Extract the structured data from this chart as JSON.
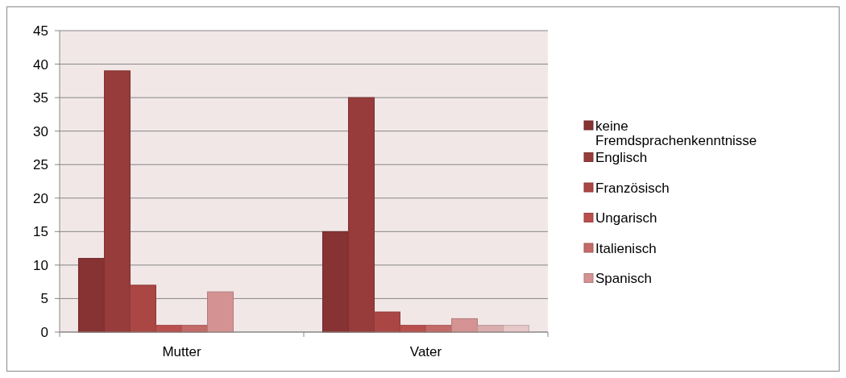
{
  "chart_data": {
    "type": "bar",
    "categories": [
      "Mutter",
      "Vater"
    ],
    "series": [
      {
        "name": "keine Fremdsprachenkenntnisse",
        "color": "#873333",
        "values": [
          11,
          15
        ]
      },
      {
        "name": "Englisch",
        "color": "#973c3b",
        "values": [
          39,
          35
        ]
      },
      {
        "name": "Französisch",
        "color": "#aa4644",
        "values": [
          7,
          3
        ]
      },
      {
        "name": "Ungarisch",
        "color": "#b9504d",
        "values": [
          1,
          1
        ]
      },
      {
        "name": "Italienisch",
        "color": "#c46a68",
        "values": [
          1,
          1
        ]
      },
      {
        "name": "Spanisch",
        "color": "#d49392",
        "values": [
          6,
          2
        ]
      },
      {
        "color": "#dbaeae",
        "values": [
          null,
          1
        ]
      },
      {
        "color": "#e6c8c8",
        "values": [
          null,
          1
        ]
      }
    ],
    "ylim": [
      0,
      45
    ],
    "yticks": [
      0,
      5,
      10,
      15,
      20,
      25,
      30,
      35,
      40,
      45
    ],
    "grid": "y",
    "legend": "right"
  }
}
